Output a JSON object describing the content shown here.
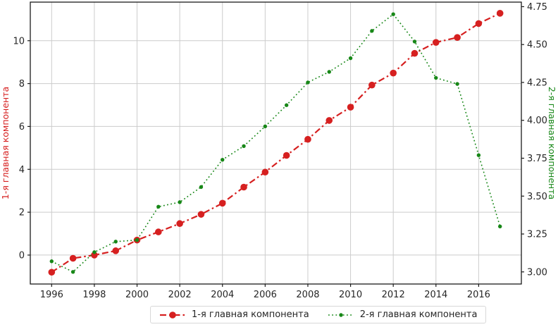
{
  "figure": {
    "background": "#ffffff",
    "grid_color": "#cccccc",
    "spine_color": "#1a1a1a",
    "tick_label_color": "#262626"
  },
  "left_axis": {
    "label": "1-я главная компонента",
    "color": "#d62020",
    "tick_labels": [
      "0",
      "2",
      "4",
      "6",
      "8",
      "10"
    ],
    "tick_values": [
      0,
      2,
      4,
      6,
      8,
      10
    ],
    "range": [
      -1.35,
      11.8
    ]
  },
  "right_axis": {
    "label": "2-я главная компонента",
    "color": "#178717",
    "tick_labels": [
      "3.00",
      "3.25",
      "3.50",
      "3.75",
      "4.00",
      "4.25",
      "4.50",
      "4.75"
    ],
    "tick_values": [
      3.0,
      3.25,
      3.5,
      3.75,
      4.0,
      4.25,
      4.5,
      4.75
    ],
    "range": [
      2.92,
      4.78
    ]
  },
  "x_axis": {
    "tick_labels": [
      "1996",
      "1998",
      "2000",
      "2002",
      "2004",
      "2006",
      "2008",
      "2010",
      "2012",
      "2014",
      "2016"
    ],
    "tick_values": [
      1996,
      1998,
      2000,
      2002,
      2004,
      2006,
      2008,
      2010,
      2012,
      2014,
      2016
    ],
    "range": [
      1995,
      2018
    ]
  },
  "legend": {
    "items": [
      {
        "label": "1-я главная компонента"
      },
      {
        "label": "2-я главная компонента"
      }
    ]
  },
  "chart_data": {
    "type": "line",
    "title": "",
    "xlabel": "",
    "ylabel_left": "1-я главная компонента",
    "ylabel_right": "2-я главная компонента",
    "x": [
      1996,
      1997,
      1998,
      1999,
      2000,
      2001,
      2002,
      2003,
      2004,
      2005,
      2006,
      2007,
      2008,
      2009,
      2010,
      2011,
      2012,
      2013,
      2014,
      2015,
      2016,
      2017
    ],
    "series": [
      {
        "name": "1-я главная компонента",
        "axis": "left",
        "color": "#d62020",
        "linestyle": "dashdot",
        "marker": "circle-large",
        "values": [
          -0.8,
          -0.15,
          0.0,
          0.2,
          0.7,
          1.08,
          1.47,
          1.9,
          2.42,
          3.17,
          3.87,
          4.65,
          5.4,
          6.28,
          6.9,
          7.93,
          8.49,
          9.41,
          9.92,
          10.15,
          10.8,
          11.28
        ]
      },
      {
        "name": "2-я главная компонента",
        "axis": "right",
        "color": "#178717",
        "linestyle": "dotted",
        "marker": "dot-small",
        "values": [
          3.07,
          3.0,
          3.13,
          3.2,
          3.21,
          3.43,
          3.46,
          3.56,
          3.74,
          3.83,
          3.96,
          4.1,
          4.25,
          4.32,
          4.41,
          4.59,
          4.7,
          4.52,
          4.28,
          4.24,
          3.77,
          3.3
        ]
      }
    ],
    "xlim": [
      1995,
      2018
    ],
    "ylim_left": [
      -1.35,
      11.8
    ],
    "ylim_right": [
      2.92,
      4.78
    ],
    "grid": true,
    "legend_position": "bottom-center"
  }
}
